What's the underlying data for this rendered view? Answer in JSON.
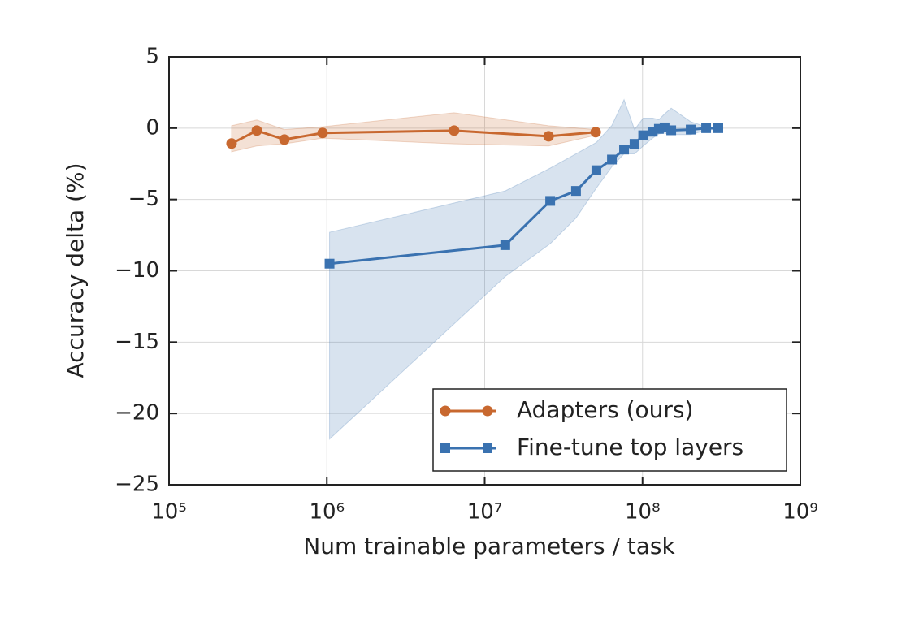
{
  "chart_data": {
    "type": "line",
    "xlabel": "Num trainable parameters / task",
    "ylabel": "Accuracy delta (%)",
    "xscale": "log",
    "xlim": [
      100000,
      1000000000
    ],
    "xticks": [
      {
        "value": 100000,
        "label": "10⁵"
      },
      {
        "value": 1000000,
        "label": "10⁶"
      },
      {
        "value": 10000000,
        "label": "10⁷"
      },
      {
        "value": 100000000,
        "label": "10⁸"
      },
      {
        "value": 1000000000,
        "label": "10⁹"
      }
    ],
    "ylim": [
      -25,
      5
    ],
    "yticks": [
      {
        "value": -25,
        "label": "−25"
      },
      {
        "value": -20,
        "label": "−20"
      },
      {
        "value": -15,
        "label": "−15"
      },
      {
        "value": -10,
        "label": "−10"
      },
      {
        "value": -5,
        "label": "−5"
      },
      0,
      5
    ],
    "grid": true,
    "legend": "lower right",
    "series": [
      {
        "name": "Adapters (ours)",
        "color": "#c8682f",
        "marker": "circle",
        "x": [
          249000,
          360000,
          538000,
          940000,
          6400000,
          25400000,
          50500000
        ],
        "values": [
          -1.08,
          -0.17,
          -0.8,
          -0.34,
          -0.17,
          -0.57,
          -0.28
        ],
        "upper": [
          0.17,
          0.57,
          -0.1,
          0.1,
          1.08,
          0.17,
          -0.1
        ],
        "lower": [
          -1.65,
          -1.25,
          -1.1,
          -0.7,
          -1.1,
          -1.25,
          -0.5
        ]
      },
      {
        "name": "Fine-tune top layers",
        "color": "#3a72b0",
        "marker": "square",
        "x": [
          1040000,
          13500000,
          26000000,
          37900000,
          51000000,
          64000000,
          76400000,
          89000000,
          101000000,
          116000000,
          127000000,
          138000000,
          152000000,
          202000000,
          253000000,
          302000000
        ],
        "values": [
          -9.5,
          -8.2,
          -5.1,
          -4.4,
          -2.95,
          -2.2,
          -1.5,
          -1.1,
          -0.5,
          -0.25,
          -0.05,
          0.05,
          -0.15,
          -0.1,
          0,
          0
        ],
        "upper": [
          -7.3,
          -4.4,
          -2.8,
          -1.8,
          -1.0,
          0.2,
          2.0,
          -0.1,
          0.7,
          0.7,
          0.6,
          1.0,
          1.4,
          0.45,
          0.1,
          0.05
        ],
        "lower": [
          -21.8,
          -10.4,
          -8.1,
          -6.3,
          -4.2,
          -2.7,
          -1.8,
          -1.8,
          -1.25,
          -0.7,
          -0.4,
          -0.35,
          -0.45,
          -0.45,
          -0.15,
          -0.05
        ]
      }
    ]
  }
}
